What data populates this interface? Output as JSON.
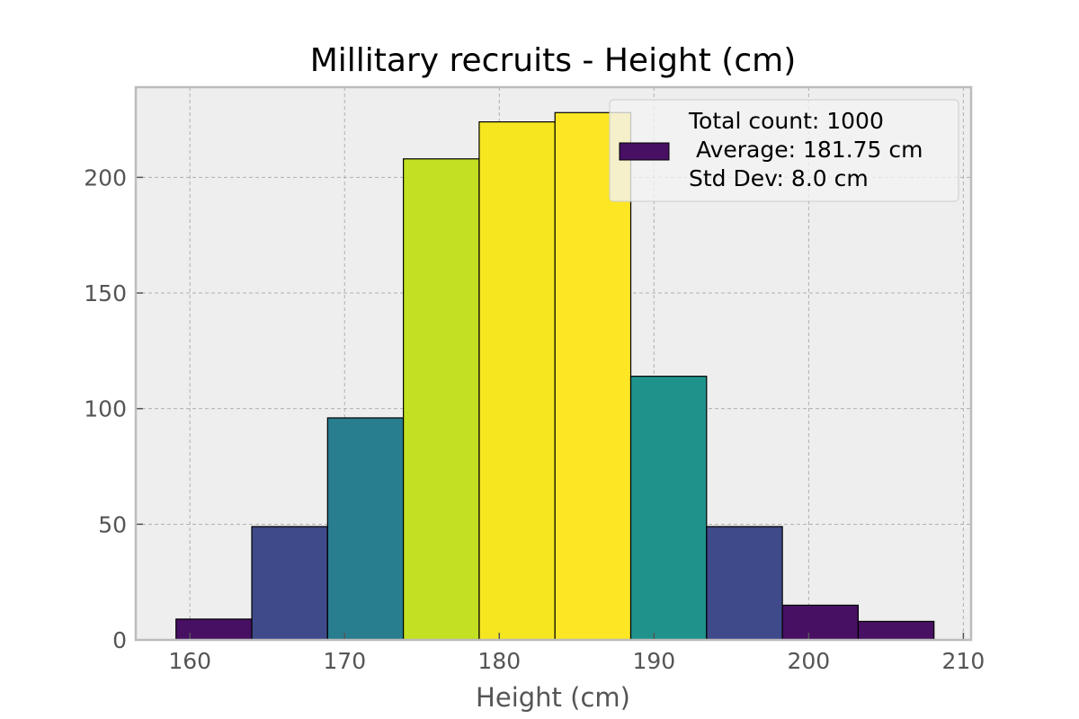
{
  "chart_data": {
    "type": "bar",
    "title": "Millitary recruits - Height (cm)",
    "xlabel": "Height (cm)",
    "ylabel": "",
    "xlim": [
      156.5,
      210.5
    ],
    "ylim": [
      0,
      239
    ],
    "x_ticks": [
      160,
      170,
      180,
      190,
      200,
      210
    ],
    "y_ticks": [
      0,
      50,
      100,
      150,
      200
    ],
    "grid": true,
    "legend_placement": "upper-right",
    "legend_lines": [
      "Total count: 1000",
      " Average: 181.75 cm",
      "Std Dev: 8.0 cm"
    ],
    "legend_swatch_color": "#471063",
    "bins": [
      {
        "x0": 159.1,
        "x1": 164.0,
        "count": 9,
        "color": "#471063"
      },
      {
        "x0": 164.0,
        "x1": 168.9,
        "count": 49,
        "color": "#3e4a89"
      },
      {
        "x0": 168.9,
        "x1": 173.8,
        "count": 96,
        "color": "#287d8e"
      },
      {
        "x0": 173.8,
        "x1": 178.7,
        "count": 208,
        "color": "#c3e022"
      },
      {
        "x0": 178.7,
        "x1": 183.6,
        "count": 224,
        "color": "#f6e620"
      },
      {
        "x0": 183.6,
        "x1": 188.5,
        "count": 228,
        "color": "#fde725"
      },
      {
        "x0": 188.5,
        "x1": 193.4,
        "count": 114,
        "color": "#20928c"
      },
      {
        "x0": 193.4,
        "x1": 198.3,
        "count": 49,
        "color": "#3e4a89"
      },
      {
        "x0": 198.3,
        "x1": 203.2,
        "count": 15,
        "color": "#471063"
      },
      {
        "x0": 203.2,
        "x1": 208.1,
        "count": 8,
        "color": "#471063"
      }
    ]
  }
}
